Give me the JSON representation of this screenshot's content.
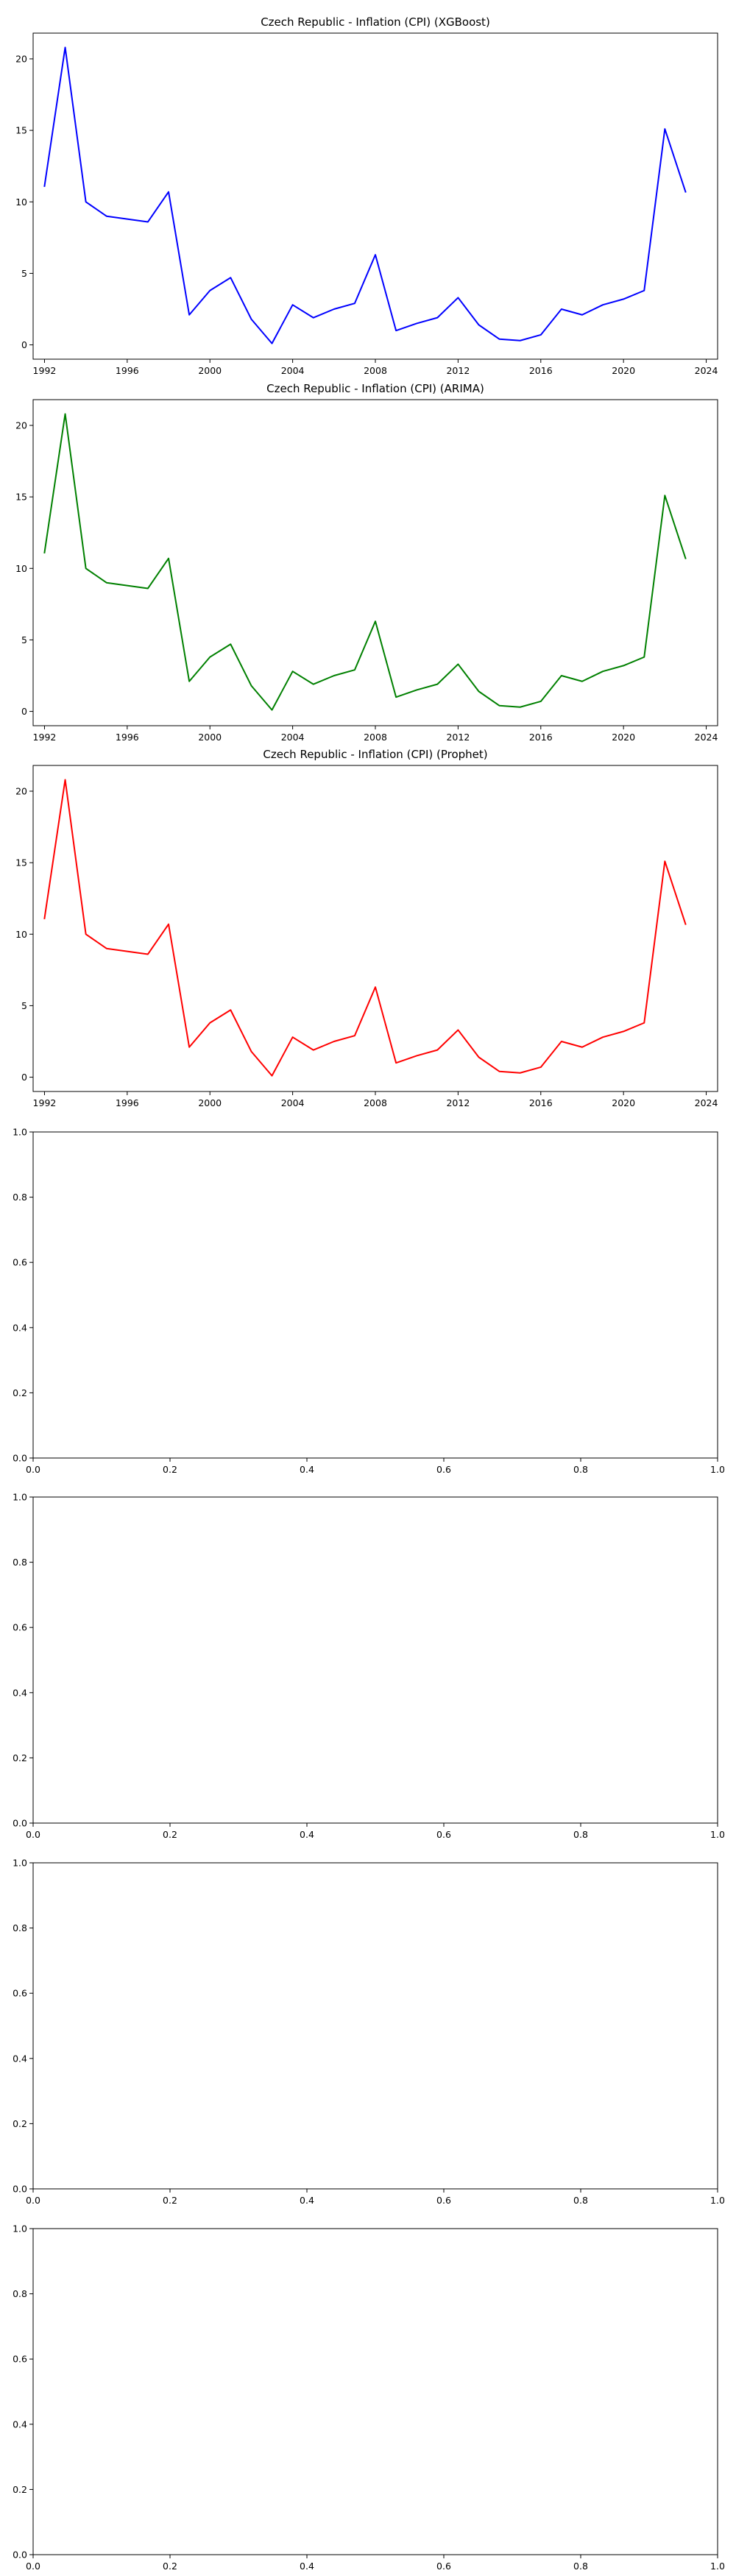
{
  "chart_data": [
    {
      "type": "line",
      "title": "Czech Republic - Inflation (CPI) (XGBoost)",
      "xlabel": "",
      "ylabel": "",
      "xlim": [
        1991.45,
        2024.55
      ],
      "ylim": [
        -1.0,
        21.8
      ],
      "xticks": [
        1992,
        1996,
        2000,
        2004,
        2008,
        2012,
        2016,
        2020,
        2024
      ],
      "xtick_labels": [
        "1992",
        "1996",
        "2000",
        "2004",
        "2008",
        "2012",
        "2016",
        "2020",
        "2024"
      ],
      "yticks": [
        0,
        5,
        10,
        15,
        20
      ],
      "ytick_labels": [
        "0",
        "5",
        "10",
        "15",
        "20"
      ],
      "grid": false,
      "series": [
        {
          "color": "#0000ff",
          "x": [
            1992,
            1993,
            1994,
            1995,
            1996,
            1997,
            1998,
            1999,
            2000,
            2001,
            2002,
            2003,
            2004,
            2005,
            2006,
            2007,
            2008,
            2009,
            2010,
            2011,
            2012,
            2013,
            2014,
            2015,
            2016,
            2017,
            2018,
            2019,
            2020,
            2021,
            2022,
            2023
          ],
          "y": [
            11.1,
            20.8,
            10.0,
            9.0,
            8.8,
            8.6,
            10.7,
            2.1,
            3.8,
            4.7,
            1.8,
            0.1,
            2.8,
            1.9,
            2.5,
            2.9,
            6.3,
            1.0,
            1.5,
            1.9,
            3.3,
            1.4,
            0.4,
            0.3,
            0.7,
            2.5,
            2.1,
            2.8,
            3.2,
            3.8,
            15.1,
            10.7
          ]
        }
      ]
    },
    {
      "type": "line",
      "title": "Czech Republic - Inflation (CPI) (ARIMA)",
      "xlabel": "",
      "ylabel": "",
      "xlim": [
        1991.45,
        2024.55
      ],
      "ylim": [
        -1.0,
        21.8
      ],
      "xticks": [
        1992,
        1996,
        2000,
        2004,
        2008,
        2012,
        2016,
        2020,
        2024
      ],
      "xtick_labels": [
        "1992",
        "1996",
        "2000",
        "2004",
        "2008",
        "2012",
        "2016",
        "2020",
        "2024"
      ],
      "yticks": [
        0,
        5,
        10,
        15,
        20
      ],
      "ytick_labels": [
        "0",
        "5",
        "10",
        "15",
        "20"
      ],
      "grid": false,
      "series": [
        {
          "color": "#008000",
          "x": [
            1992,
            1993,
            1994,
            1995,
            1996,
            1997,
            1998,
            1999,
            2000,
            2001,
            2002,
            2003,
            2004,
            2005,
            2006,
            2007,
            2008,
            2009,
            2010,
            2011,
            2012,
            2013,
            2014,
            2015,
            2016,
            2017,
            2018,
            2019,
            2020,
            2021,
            2022,
            2023
          ],
          "y": [
            11.1,
            20.8,
            10.0,
            9.0,
            8.8,
            8.6,
            10.7,
            2.1,
            3.8,
            4.7,
            1.8,
            0.1,
            2.8,
            1.9,
            2.5,
            2.9,
            6.3,
            1.0,
            1.5,
            1.9,
            3.3,
            1.4,
            0.4,
            0.3,
            0.7,
            2.5,
            2.1,
            2.8,
            3.2,
            3.8,
            15.1,
            10.7
          ]
        }
      ]
    },
    {
      "type": "line",
      "title": "Czech Republic - Inflation (CPI) (Prophet)",
      "xlabel": "",
      "ylabel": "",
      "xlim": [
        1991.45,
        2024.55
      ],
      "ylim": [
        -1.0,
        21.8
      ],
      "xticks": [
        1992,
        1996,
        2000,
        2004,
        2008,
        2012,
        2016,
        2020,
        2024
      ],
      "xtick_labels": [
        "1992",
        "1996",
        "2000",
        "2004",
        "2008",
        "2012",
        "2016",
        "2020",
        "2024"
      ],
      "yticks": [
        0,
        5,
        10,
        15,
        20
      ],
      "ytick_labels": [
        "0",
        "5",
        "10",
        "15",
        "20"
      ],
      "grid": false,
      "series": [
        {
          "color": "#ff0000",
          "x": [
            1992,
            1993,
            1994,
            1995,
            1996,
            1997,
            1998,
            1999,
            2000,
            2001,
            2002,
            2003,
            2004,
            2005,
            2006,
            2007,
            2008,
            2009,
            2010,
            2011,
            2012,
            2013,
            2014,
            2015,
            2016,
            2017,
            2018,
            2019,
            2020,
            2021,
            2022,
            2023
          ],
          "y": [
            11.1,
            20.8,
            10.0,
            9.0,
            8.8,
            8.6,
            10.7,
            2.1,
            3.8,
            4.7,
            1.8,
            0.1,
            2.8,
            1.9,
            2.5,
            2.9,
            6.3,
            1.0,
            1.5,
            1.9,
            3.3,
            1.4,
            0.4,
            0.3,
            0.7,
            2.5,
            2.1,
            2.8,
            3.2,
            3.8,
            15.1,
            10.7
          ]
        }
      ]
    },
    {
      "type": "line",
      "title": "",
      "xlim": [
        0.0,
        1.0
      ],
      "ylim": [
        0.0,
        1.0
      ],
      "xticks": [
        0.0,
        0.2,
        0.4,
        0.6,
        0.8,
        1.0
      ],
      "xtick_labels": [
        "0.0",
        "0.2",
        "0.4",
        "0.6",
        "0.8",
        "1.0"
      ],
      "yticks": [
        0.0,
        0.2,
        0.4,
        0.6,
        0.8,
        1.0
      ],
      "ytick_labels": [
        "0.0",
        "0.2",
        "0.4",
        "0.6",
        "0.8",
        "1.0"
      ],
      "grid": false,
      "series": []
    },
    {
      "type": "line",
      "title": "",
      "xlim": [
        0.0,
        1.0
      ],
      "ylim": [
        0.0,
        1.0
      ],
      "xticks": [
        0.0,
        0.2,
        0.4,
        0.6,
        0.8,
        1.0
      ],
      "xtick_labels": [
        "0.0",
        "0.2",
        "0.4",
        "0.6",
        "0.8",
        "1.0"
      ],
      "yticks": [
        0.0,
        0.2,
        0.4,
        0.6,
        0.8,
        1.0
      ],
      "ytick_labels": [
        "0.0",
        "0.2",
        "0.4",
        "0.6",
        "0.8",
        "1.0"
      ],
      "grid": false,
      "series": []
    },
    {
      "type": "line",
      "title": "",
      "xlim": [
        0.0,
        1.0
      ],
      "ylim": [
        0.0,
        1.0
      ],
      "xticks": [
        0.0,
        0.2,
        0.4,
        0.6,
        0.8,
        1.0
      ],
      "xtick_labels": [
        "0.0",
        "0.2",
        "0.4",
        "0.6",
        "0.8",
        "1.0"
      ],
      "yticks": [
        0.0,
        0.2,
        0.4,
        0.6,
        0.8,
        1.0
      ],
      "ytick_labels": [
        "0.0",
        "0.2",
        "0.4",
        "0.6",
        "0.8",
        "1.0"
      ],
      "grid": false,
      "series": []
    },
    {
      "type": "line",
      "title": "",
      "xlim": [
        0.0,
        1.0
      ],
      "ylim": [
        0.0,
        1.0
      ],
      "xticks": [
        0.0,
        0.2,
        0.4,
        0.6,
        0.8,
        1.0
      ],
      "xtick_labels": [
        "0.0",
        "0.2",
        "0.4",
        "0.6",
        "0.8",
        "1.0"
      ],
      "yticks": [
        0.0,
        0.2,
        0.4,
        0.6,
        0.8,
        1.0
      ],
      "ytick_labels": [
        "0.0",
        "0.2",
        "0.4",
        "0.6",
        "0.8",
        "1.0"
      ],
      "grid": false,
      "series": []
    }
  ]
}
